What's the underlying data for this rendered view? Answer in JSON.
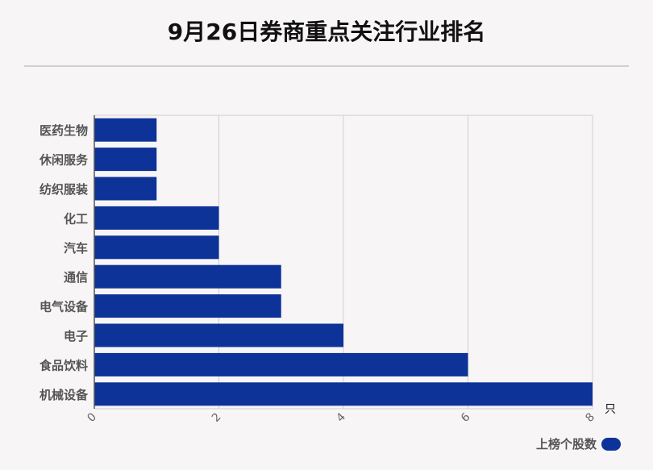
{
  "title": "9月26日券商重点关注行业排名",
  "chart_data": {
    "type": "bar",
    "orientation": "horizontal",
    "categories": [
      "医药生物",
      "休闲服务",
      "纺织服装",
      "化工",
      "汽车",
      "通信",
      "电气设备",
      "电子",
      "食品饮料",
      "机械设备"
    ],
    "series": [
      {
        "name": "上榜个股数",
        "values": [
          1,
          1,
          1,
          2,
          2,
          3,
          3,
          4,
          6,
          8
        ],
        "color": "#0d3399"
      }
    ],
    "xlim": [
      0,
      8
    ],
    "xticks": [
      "0",
      "2",
      "4",
      "6",
      "8"
    ],
    "unit": "只",
    "grid": true,
    "legend_position": "bottom-right"
  }
}
